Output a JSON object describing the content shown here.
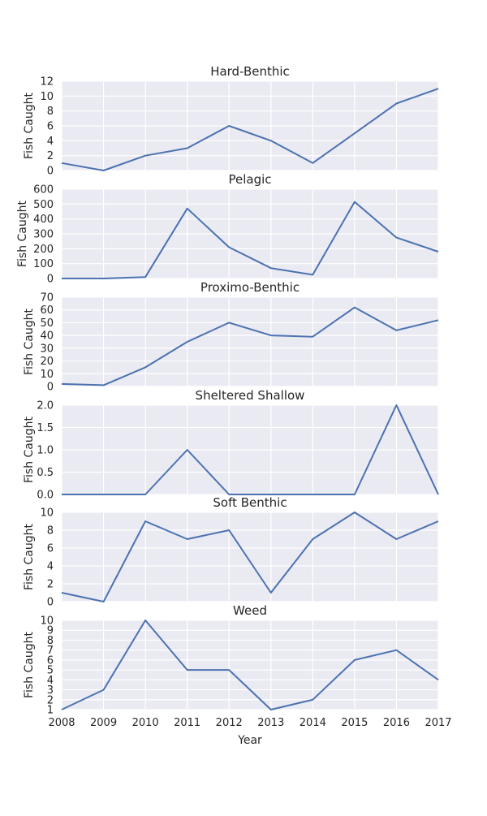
{
  "colors": {
    "panel_bg": "#EAEAF2",
    "grid": "#FFFFFF",
    "line": "#4C72B0",
    "text": "#262626"
  },
  "chart_data": {
    "type": "line",
    "xlabel": "Year",
    "x": [
      2008,
      2009,
      2010,
      2011,
      2012,
      2013,
      2014,
      2015,
      2016,
      2017
    ],
    "grid": true,
    "panels": [
      {
        "title": "Hard-Benthic",
        "ylabel": "Fish Caught",
        "ylim": [
          0,
          12
        ],
        "yticks": [
          0,
          2,
          4,
          6,
          8,
          10,
          12
        ],
        "ytick_labels": [
          "0",
          "2",
          "4",
          "6",
          "8",
          "10",
          "12"
        ],
        "values": [
          1,
          0,
          2,
          3,
          6,
          4,
          1,
          5,
          9,
          11
        ]
      },
      {
        "title": "Pelagic",
        "ylabel": "Fish Caught",
        "ylim": [
          0,
          600
        ],
        "yticks": [
          0,
          100,
          200,
          300,
          400,
          500,
          600
        ],
        "ytick_labels": [
          "0",
          "100",
          "200",
          "300",
          "400",
          "500",
          "600"
        ],
        "values": [
          0,
          0,
          10,
          470,
          210,
          70,
          25,
          515,
          275,
          180
        ]
      },
      {
        "title": "Proximo-Benthic",
        "ylabel": "Fish Caught",
        "ylim": [
          0,
          70
        ],
        "yticks": [
          0,
          10,
          20,
          30,
          40,
          50,
          60,
          70
        ],
        "ytick_labels": [
          "0",
          "10",
          "20",
          "30",
          "40",
          "50",
          "60",
          "70"
        ],
        "values": [
          2,
          1,
          15,
          35,
          50,
          40,
          39,
          62,
          44,
          52
        ]
      },
      {
        "title": "Sheltered Shallow",
        "ylabel": "Fish Caught",
        "ylim": [
          0,
          2
        ],
        "yticks": [
          0,
          0.5,
          1,
          1.5,
          2
        ],
        "ytick_labels": [
          "0.0",
          "0.5",
          "1.0",
          "1.5",
          "2.0"
        ],
        "values": [
          0,
          0,
          0,
          1,
          0,
          0,
          0,
          0,
          2,
          0
        ]
      },
      {
        "title": "Soft Benthic",
        "ylabel": "Fish Caught",
        "ylim": [
          0,
          10
        ],
        "yticks": [
          0,
          2,
          4,
          6,
          8,
          10
        ],
        "ytick_labels": [
          "0",
          "2",
          "4",
          "6",
          "8",
          "10"
        ],
        "values": [
          1,
          0,
          9,
          7,
          8,
          1,
          7,
          10,
          7,
          9
        ]
      },
      {
        "title": "Weed",
        "ylabel": "Fish Caught",
        "ylim": [
          1,
          10
        ],
        "yticks": [
          1,
          2,
          3,
          4,
          5,
          6,
          7,
          8,
          9,
          10
        ],
        "ytick_labels": [
          "1",
          "2",
          "3",
          "4",
          "5",
          "6",
          "7",
          "8",
          "9",
          "10"
        ],
        "values": [
          1,
          3,
          10,
          5,
          5,
          1,
          2,
          6,
          7,
          4
        ]
      }
    ]
  }
}
